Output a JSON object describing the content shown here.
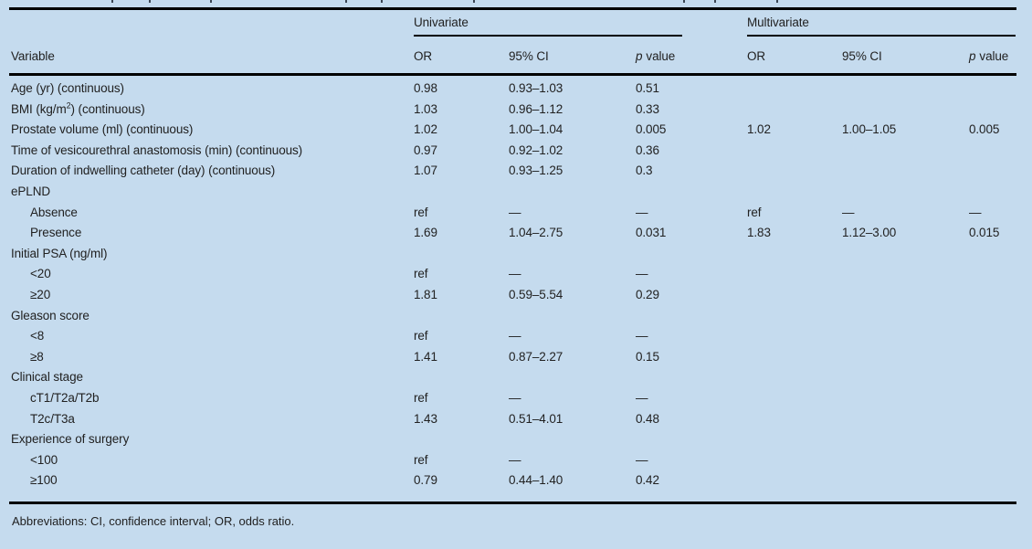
{
  "colors": {
    "background": "#c5dbee",
    "text": "#212121",
    "rule": "#000000"
  },
  "table": {
    "header": {
      "variable": "Variable",
      "group_univariate": "Univariate",
      "group_multivariate": "Multivariate",
      "or": "OR",
      "ci": "95% CI",
      "p_italic": "p",
      "p_rest": "value"
    },
    "rows": [
      {
        "label": "Age (yr) (continuous)",
        "indent": false,
        "u_or": "0.98",
        "u_ci": "0.93–1.03",
        "u_p": "0.51",
        "m_or": "",
        "m_ci": "",
        "m_p": ""
      },
      {
        "label": "BMI (kg/m²) (continuous)",
        "indent": false,
        "u_or": "1.03",
        "u_ci": "0.96–1.12",
        "u_p": "0.33",
        "m_or": "",
        "m_ci": "",
        "m_p": ""
      },
      {
        "label": "Prostate volume (ml) (continuous)",
        "indent": false,
        "u_or": "1.02",
        "u_ci": "1.00–1.04",
        "u_p": "0.005",
        "m_or": "1.02",
        "m_ci": "1.00–1.05",
        "m_p": "0.005"
      },
      {
        "label": "Time of vesicourethral anastomosis (min) (continuous)",
        "indent": false,
        "u_or": "0.97",
        "u_ci": "0.92–1.02",
        "u_p": "0.36",
        "m_or": "",
        "m_ci": "",
        "m_p": ""
      },
      {
        "label": "Duration of indwelling catheter (day) (continuous)",
        "indent": false,
        "u_or": "1.07",
        "u_ci": "0.93–1.25",
        "u_p": "0.3",
        "m_or": "",
        "m_ci": "",
        "m_p": ""
      },
      {
        "label": "ePLND",
        "indent": false,
        "u_or": "",
        "u_ci": "",
        "u_p": "",
        "m_or": "",
        "m_ci": "",
        "m_p": ""
      },
      {
        "label": "Absence",
        "indent": true,
        "u_or": "ref",
        "u_ci": "—",
        "u_p": "—",
        "m_or": "ref",
        "m_ci": "—",
        "m_p": "—"
      },
      {
        "label": "Presence",
        "indent": true,
        "u_or": "1.69",
        "u_ci": "1.04–2.75",
        "u_p": "0.031",
        "m_or": "1.83",
        "m_ci": "1.12–3.00",
        "m_p": "0.015"
      },
      {
        "label": "Initial PSA (ng/ml)",
        "indent": false,
        "u_or": "",
        "u_ci": "",
        "u_p": "",
        "m_or": "",
        "m_ci": "",
        "m_p": ""
      },
      {
        "label": "<20",
        "indent": true,
        "u_or": "ref",
        "u_ci": "—",
        "u_p": "—",
        "m_or": "",
        "m_ci": "",
        "m_p": ""
      },
      {
        "label": "≥20",
        "indent": true,
        "u_or": "1.81",
        "u_ci": "0.59–5.54",
        "u_p": "0.29",
        "m_or": "",
        "m_ci": "",
        "m_p": ""
      },
      {
        "label": "Gleason score",
        "indent": false,
        "u_or": "",
        "u_ci": "",
        "u_p": "",
        "m_or": "",
        "m_ci": "",
        "m_p": ""
      },
      {
        "label": "<8",
        "indent": true,
        "u_or": "ref",
        "u_ci": "—",
        "u_p": "—",
        "m_or": "",
        "m_ci": "",
        "m_p": ""
      },
      {
        "label": "≥8",
        "indent": true,
        "u_or": "1.41",
        "u_ci": "0.87–2.27",
        "u_p": "0.15",
        "m_or": "",
        "m_ci": "",
        "m_p": ""
      },
      {
        "label": "Clinical stage",
        "indent": false,
        "u_or": "",
        "u_ci": "",
        "u_p": "",
        "m_or": "",
        "m_ci": "",
        "m_p": ""
      },
      {
        "label": "cT1/T2a/T2b",
        "indent": true,
        "u_or": "ref",
        "u_ci": "—",
        "u_p": "—",
        "m_or": "",
        "m_ci": "",
        "m_p": ""
      },
      {
        "label": "T2c/T3a",
        "indent": true,
        "u_or": "1.43",
        "u_ci": "0.51–4.01",
        "u_p": "0.48",
        "m_or": "",
        "m_ci": "",
        "m_p": ""
      },
      {
        "label": "Experience of surgery",
        "indent": false,
        "u_or": "",
        "u_ci": "",
        "u_p": "",
        "m_or": "",
        "m_ci": "",
        "m_p": ""
      },
      {
        "label": "<100",
        "indent": true,
        "u_or": "ref",
        "u_ci": "—",
        "u_p": "—",
        "m_or": "",
        "m_ci": "",
        "m_p": ""
      },
      {
        "label": "≥100",
        "indent": true,
        "u_or": "0.79",
        "u_ci": "0.44–1.40",
        "u_p": "0.42",
        "m_or": "",
        "m_ci": "",
        "m_p": ""
      }
    ],
    "footnote": "Abbreviations: CI, confidence interval; OR, odds ratio."
  }
}
